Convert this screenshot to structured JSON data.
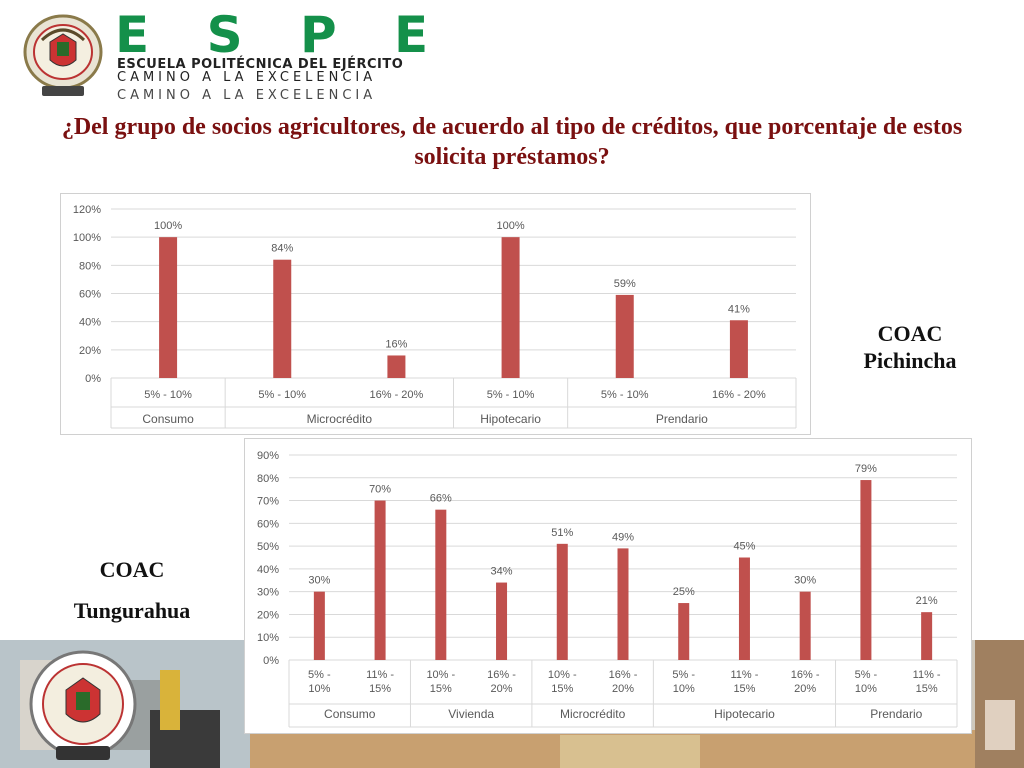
{
  "header": {
    "logo_word": "E S P E",
    "subtitle_1": "ESCUELA POLITÉCNICA DEL EJÉRCITO",
    "subtitle_2": "CAMINO A LA EXCELENCIA",
    "subtitle_3": "CAMINO A LA EXCELENCIA",
    "seal_text": "ESCUELA POLITECNICA DEL EJERCITO",
    "seal_country": "ECUADOR"
  },
  "title": "¿Del grupo de socios agricultores, de acuerdo al tipo de créditos, que porcentaje de estos solicita préstamos?",
  "labels": {
    "pichincha_line1": "COAC",
    "pichincha_line2": "Pichincha",
    "tungurahua_line1": "COAC",
    "tungurahua_line2": "Tungurahua"
  },
  "colors": {
    "bar": "#c0504d",
    "grid": "#d9d9d9",
    "axis_text": "#595959",
    "title": "#7a1010",
    "logo_green": "#14904a"
  },
  "chart_data": [
    {
      "type": "bar",
      "title": "",
      "xlabel": "",
      "ylabel": "",
      "ylim": [
        0,
        120
      ],
      "y_ticks": [
        "0%",
        "20%",
        "40%",
        "60%",
        "80%",
        "100%",
        "120%"
      ],
      "grid": true,
      "legend": "none",
      "groups": [
        {
          "name": "Consumo",
          "bars": [
            {
              "range": "5% - 10%",
              "value": 100,
              "label": "100%"
            }
          ]
        },
        {
          "name": "Microcrédito",
          "bars": [
            {
              "range": "5% - 10%",
              "value": 84,
              "label": "84%"
            },
            {
              "range": "16% - 20%",
              "value": 16,
              "label": "16%"
            }
          ]
        },
        {
          "name": "Hipotecario",
          "bars": [
            {
              "range": "5% - 10%",
              "value": 100,
              "label": "100%"
            }
          ]
        },
        {
          "name": "Prendario",
          "bars": [
            {
              "range": "5% - 10%",
              "value": 59,
              "label": "59%"
            },
            {
              "range": "16% - 20%",
              "value": 41,
              "label": "41%"
            }
          ]
        }
      ]
    },
    {
      "type": "bar",
      "title": "",
      "xlabel": "",
      "ylabel": "",
      "ylim": [
        0,
        90
      ],
      "y_ticks": [
        "0%",
        "10%",
        "20%",
        "30%",
        "40%",
        "50%",
        "60%",
        "70%",
        "80%",
        "90%"
      ],
      "grid": true,
      "legend": "none",
      "groups": [
        {
          "name": "Consumo",
          "bars": [
            {
              "range": "5% - 10%",
              "value": 30,
              "label": "30%"
            },
            {
              "range": "11% - 15%",
              "value": 70,
              "label": "70%"
            }
          ]
        },
        {
          "name": "Vivienda",
          "bars": [
            {
              "range": "10% - 15%",
              "value": 66,
              "label": "66%"
            },
            {
              "range": "16% - 20%",
              "value": 34,
              "label": "34%"
            }
          ]
        },
        {
          "name": "Microcrédito",
          "bars": [
            {
              "range": "10% - 15%",
              "value": 51,
              "label": "51%"
            },
            {
              "range": "16% - 20%",
              "value": 49,
              "label": "49%"
            }
          ]
        },
        {
          "name": "Hipotecario",
          "bars": [
            {
              "range": "5% - 10%",
              "value": 25,
              "label": "25%"
            },
            {
              "range": "11% - 15%",
              "value": 45,
              "label": "45%"
            },
            {
              "range": "16% - 20%",
              "value": 30,
              "label": "30%"
            }
          ]
        },
        {
          "name": "Prendario",
          "bars": [
            {
              "range": "5% - 10%",
              "value": 79,
              "label": "79%"
            },
            {
              "range": "11% - 15%",
              "value": 21,
              "label": "21%"
            }
          ]
        }
      ]
    }
  ]
}
